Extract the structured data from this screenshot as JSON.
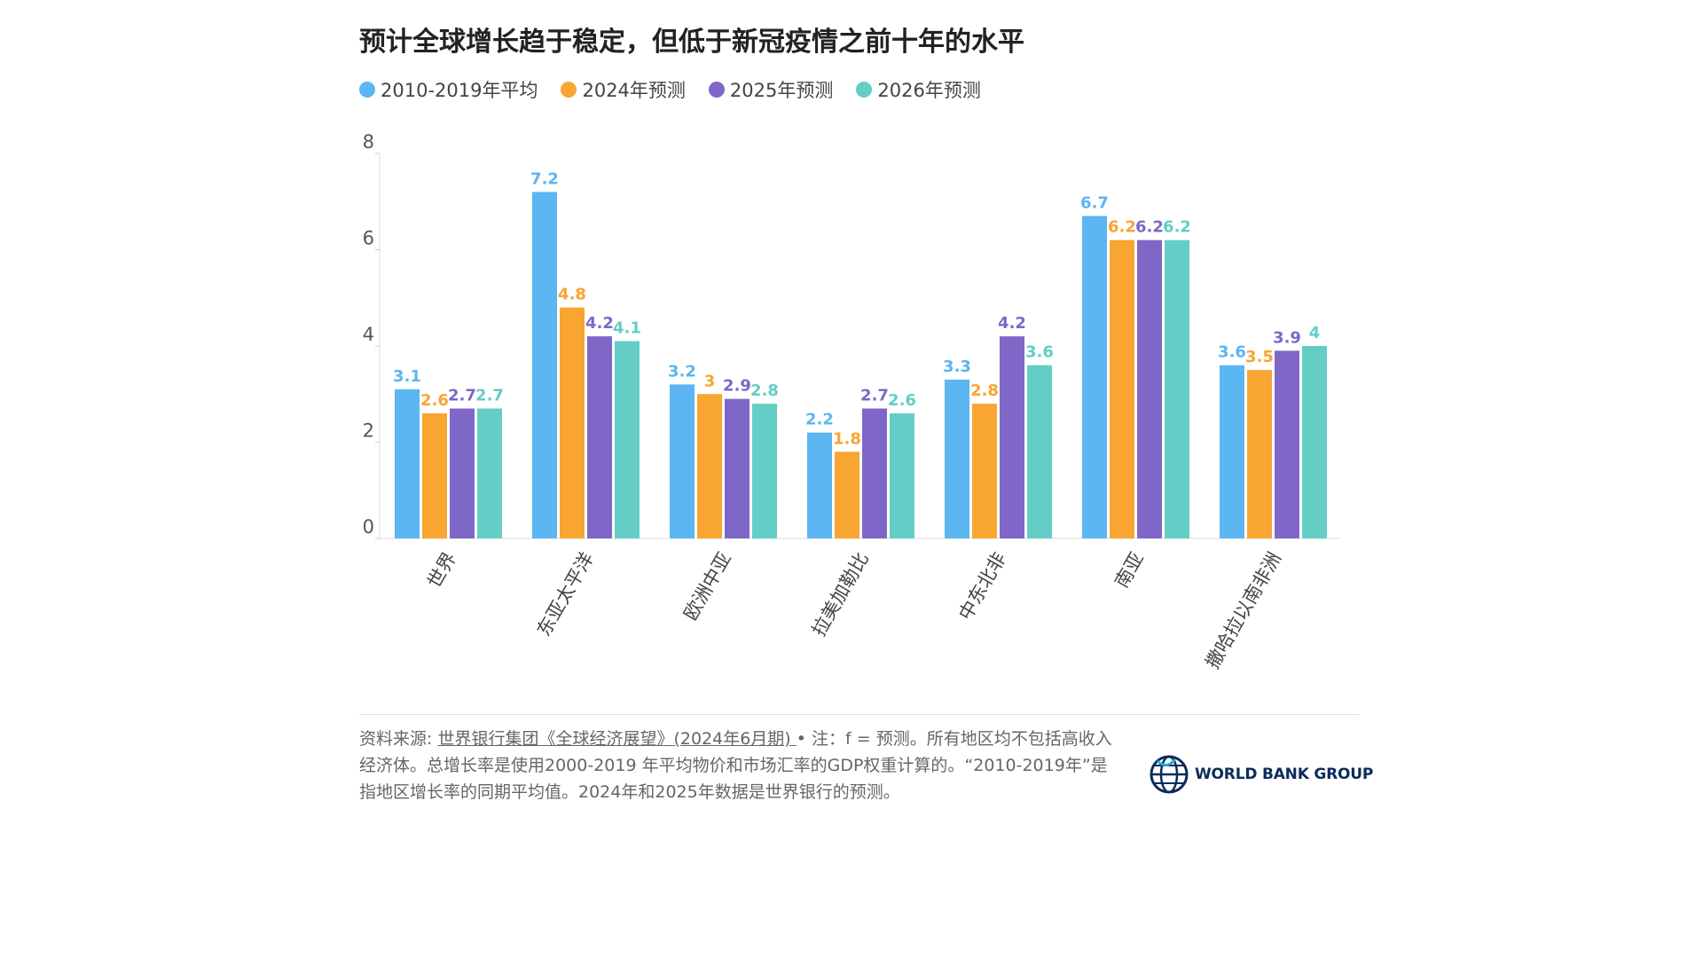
{
  "title": "预计全球增长趋于稳定，但低于新冠疫情之前十年的水平",
  "source": {
    "prefix": "资料来源: ",
    "link": "世界银行集团《全球经济展望》(2024年6月期) ",
    "note": " • 注：f = 预测。所有地区均不包括高收入经济体。总增长率是使用2000-2019 年平均物价和市场汇率的GDP权重计算的。“2010-2019年”是指地区增长率的同期平均值。2024年和2025年数据是世界银行的预测。"
  },
  "logo": {
    "text": "WORLD BANK GROUP",
    "icon": "globe-icon"
  },
  "chart_data": {
    "type": "bar",
    "title": "预计全球增长趋于稳定，但低于新冠疫情之前十年的水平",
    "categories": [
      "世界",
      "东亚太平洋",
      "欧洲中亚",
      "拉美加勒比",
      "中东北非",
      "南亚",
      "撒哈拉以南非洲"
    ],
    "series": [
      {
        "name": "2010-2019年平均",
        "color": "#5bb6f2",
        "values": [
          3.1,
          7.2,
          3.2,
          2.2,
          3.3,
          6.7,
          3.6
        ]
      },
      {
        "name": "2024年预测",
        "color": "#f8a531",
        "values": [
          2.6,
          4.8,
          3,
          1.8,
          2.8,
          6.2,
          3.5
        ]
      },
      {
        "name": "2025年预测",
        "color": "#7f67c7",
        "values": [
          2.7,
          4.2,
          2.9,
          2.7,
          4.2,
          6.2,
          3.9
        ]
      },
      {
        "name": "2026年预测",
        "color": "#64cec6",
        "values": [
          2.7,
          4.1,
          2.8,
          2.6,
          3.6,
          6.2,
          4
        ]
      }
    ],
    "yticks": [
      0,
      2,
      4,
      6,
      8
    ],
    "ylim": [
      0,
      8
    ],
    "grid": false,
    "legend_position": "top-left"
  }
}
